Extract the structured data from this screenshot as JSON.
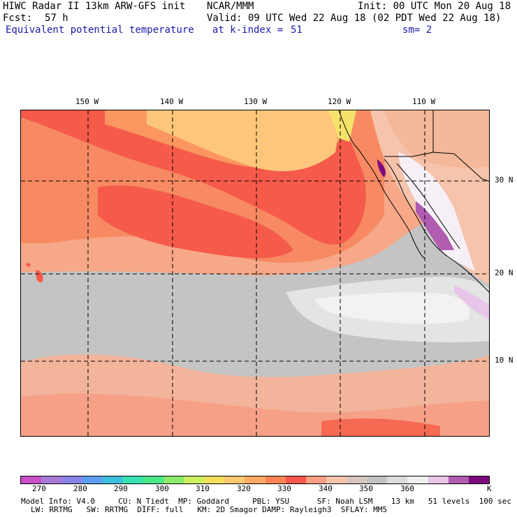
{
  "header": {
    "title": "HIWC Radar II 13km ARW-GFS init",
    "org": "NCAR/MMM",
    "init": "Init: 00 UTC Mon 20 Aug 18",
    "fcst_label": "Fcst:",
    "fcst_value": "57 h",
    "valid": "Valid: 09 UTC Wed 22 Aug 18 (02 PDT Wed 22 Aug 18)",
    "field": "Equivalent potential temperature",
    "level": "at k-index =",
    "level_value": "51",
    "smoothing": "sm= 2"
  },
  "map": {
    "lon_labels": [
      "150 W",
      "140 W",
      "130 W",
      "120 W",
      "110 W"
    ],
    "lat_labels": [
      "30 N",
      "20 N",
      "10 N"
    ]
  },
  "colorbar": {
    "colors": [
      "#c84fc8",
      "#a57ad8",
      "#8a82e6",
      "#5c9ff0",
      "#3cc0e0",
      "#38e2b0",
      "#4ae88a",
      "#8eea6a",
      "#caf060",
      "#f0e05a",
      "#fcc870",
      "#fcaa64",
      "#fc8454",
      "#f6574a",
      "#fa9e84",
      "#f4c4ac",
      "#d6c6c0",
      "#c2c2c2",
      "#dcdcdc",
      "#f0f0f0",
      "#e8c6ea",
      "#b05cb0",
      "#7c0a7c"
    ],
    "labels": [
      "270",
      "280",
      "290",
      "300",
      "310",
      "320",
      "330",
      "340",
      "350",
      "360"
    ],
    "unit": "K"
  },
  "model_info": {
    "line1": "Model Info: V4.0     CU: N_Tiedt  MP: Goddard     PBL: YSU      SF: Noah LSM    13 km   51 levels  100 sec",
    "line2": "LW: RRTMG   SW: RRTMG  DIFF: full   KM: 2D Smagor DAMP: Rayleigh3  SFLAY: MM5"
  }
}
